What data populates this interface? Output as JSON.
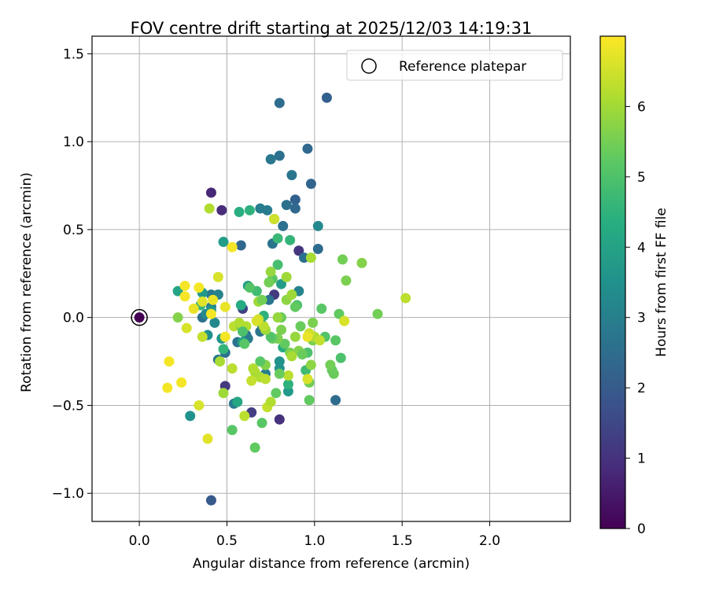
{
  "chart_data": {
    "type": "scatter",
    "title": "FOV centre drift starting at 2025/12/03 14:19:31",
    "xlabel": "Angular distance from reference (arcmin)",
    "ylabel": "Rotation from reference (arcmin)",
    "xlim": [
      -0.27,
      2.46
    ],
    "ylim": [
      -1.16,
      1.6
    ],
    "xticks": [
      0.0,
      0.5,
      1.0,
      1.5,
      2.0
    ],
    "yticks": [
      -1.0,
      -0.5,
      0.0,
      0.5,
      1.0,
      1.5
    ],
    "xtick_labels": [
      "0.0",
      "0.5",
      "1.0",
      "1.5",
      "2.0"
    ],
    "ytick_labels": [
      "−1.0",
      "−0.5",
      "0.0",
      "0.5",
      "1.0",
      "1.5"
    ],
    "grid": true,
    "legend": {
      "label": "Reference platepar",
      "placement": "top-right"
    },
    "reference_point": {
      "x": 0.0,
      "y": 0.0,
      "hours": 0.0
    },
    "colorbar": {
      "label": "Hours from first FF file",
      "colormap": "viridis",
      "range": [
        0,
        7.0
      ],
      "ticks": [
        0,
        1,
        2,
        3,
        4,
        5,
        6
      ],
      "tick_labels": [
        "0",
        "1",
        "2",
        "3",
        "4",
        "5",
        "6"
      ]
    },
    "points": [
      [
        0.0,
        0.0,
        0.0
      ],
      [
        0.41,
        0.71,
        0.8
      ],
      [
        0.47,
        0.61,
        0.9
      ],
      [
        0.49,
        -0.39,
        1.2
      ],
      [
        0.64,
        -0.54,
        1.3
      ],
      [
        0.8,
        -0.58,
        1.0
      ],
      [
        0.91,
        0.38,
        1.1
      ],
      [
        0.59,
        0.05,
        1.4
      ],
      [
        0.77,
        0.13,
        1.2
      ],
      [
        0.41,
        -1.04,
        2.0
      ],
      [
        0.8,
        1.22,
        2.5
      ],
      [
        1.07,
        1.25,
        2.2
      ],
      [
        0.75,
        0.9,
        2.8
      ],
      [
        0.8,
        0.92,
        2.6
      ],
      [
        0.96,
        0.96,
        2.4
      ],
      [
        0.87,
        0.81,
        2.7
      ],
      [
        0.98,
        0.76,
        2.3
      ],
      [
        0.89,
        0.67,
        2.2
      ],
      [
        0.84,
        0.64,
        2.6
      ],
      [
        0.89,
        0.62,
        2.4
      ],
      [
        0.69,
        0.62,
        3.0
      ],
      [
        0.73,
        0.61,
        2.9
      ],
      [
        0.82,
        0.52,
        2.6
      ],
      [
        1.02,
        0.52,
        3.3
      ],
      [
        1.02,
        0.39,
        2.5
      ],
      [
        0.58,
        0.41,
        2.4
      ],
      [
        0.76,
        0.42,
        2.7
      ],
      [
        0.94,
        0.34,
        2.6
      ],
      [
        1.12,
        -0.47,
        2.5
      ],
      [
        0.91,
        0.15,
        3.1
      ],
      [
        0.36,
        0.0,
        2.6
      ],
      [
        0.41,
        0.13,
        2.8
      ],
      [
        0.45,
        0.13,
        3.1
      ],
      [
        0.41,
        0.06,
        2.9
      ],
      [
        0.56,
        -0.14,
        2.7
      ],
      [
        0.61,
        -0.1,
        2.8
      ],
      [
        0.62,
        -0.12,
        2.9
      ],
      [
        0.7,
        -0.04,
        3.1
      ],
      [
        0.74,
        0.1,
        2.7
      ],
      [
        0.69,
        -0.08,
        2.7
      ],
      [
        0.43,
        -0.03,
        3.3
      ],
      [
        0.45,
        -0.24,
        2.8
      ],
      [
        0.49,
        -0.2,
        2.6
      ],
      [
        0.54,
        -0.49,
        2.9
      ],
      [
        0.48,
        0.43,
        3.9
      ],
      [
        0.72,
        -0.32,
        3.0
      ],
      [
        0.29,
        -0.56,
        3.6
      ],
      [
        0.8,
        -0.29,
        3.6
      ],
      [
        0.77,
        0.56,
        3.5
      ],
      [
        0.85,
        -0.42,
        3.8
      ],
      [
        0.38,
        0.02,
        3.3
      ],
      [
        0.39,
        -0.1,
        3.5
      ],
      [
        0.47,
        -0.12,
        3.7
      ],
      [
        0.62,
        0.18,
        3.9
      ],
      [
        0.59,
        -0.14,
        4.1
      ],
      [
        0.8,
        -0.25,
        3.6
      ],
      [
        0.56,
        -0.48,
        4.2
      ],
      [
        0.41,
        0.04,
        3.7
      ],
      [
        0.36,
        0.14,
        3.8
      ],
      [
        0.81,
        0.19,
        3.9
      ],
      [
        0.58,
        0.07,
        4.3
      ],
      [
        0.63,
        0.61,
        4.5
      ],
      [
        0.57,
        0.6,
        4.4
      ],
      [
        0.79,
        0.45,
        4.7
      ],
      [
        0.86,
        0.44,
        4.6
      ],
      [
        0.85,
        -0.38,
        4.5
      ],
      [
        0.95,
        -0.3,
        4.8
      ],
      [
        0.82,
        -0.17,
        4.3
      ],
      [
        0.67,
        0.15,
        4.8
      ],
      [
        0.71,
        0.01,
        4.5
      ],
      [
        0.35,
        0.07,
        4.6
      ],
      [
        0.22,
        0.15,
        4.1
      ],
      [
        0.48,
        -0.18,
        4.6
      ],
      [
        0.79,
        0.3,
        4.9
      ],
      [
        0.63,
        0.17,
        5.1
      ],
      [
        0.76,
        0.22,
        5.2
      ],
      [
        0.9,
        0.07,
        5.0
      ],
      [
        0.97,
        -0.47,
        5.3
      ],
      [
        0.53,
        -0.64,
        5.2
      ],
      [
        0.66,
        -0.74,
        5.3
      ],
      [
        0.7,
        -0.6,
        5.2
      ],
      [
        0.78,
        -0.43,
        5.3
      ],
      [
        0.96,
        -0.2,
        5.0
      ],
      [
        1.04,
        0.05,
        5.2
      ],
      [
        1.1,
        -0.3,
        5.3
      ],
      [
        1.11,
        -0.32,
        5.4
      ],
      [
        1.09,
        -0.27,
        5.5
      ],
      [
        1.15,
        -0.23,
        5.0
      ],
      [
        1.12,
        -0.13,
        5.2
      ],
      [
        1.06,
        -0.11,
        5.1
      ],
      [
        1.14,
        0.02,
        5.3
      ],
      [
        1.18,
        0.21,
        5.6
      ],
      [
        1.16,
        0.33,
        5.5
      ],
      [
        1.27,
        0.31,
        5.7
      ],
      [
        1.36,
        0.02,
        5.5
      ],
      [
        1.52,
        0.11,
        6.3
      ],
      [
        0.97,
        -0.37,
        5.5
      ],
      [
        0.98,
        -0.27,
        5.8
      ],
      [
        0.99,
        -0.13,
        5.6
      ],
      [
        0.99,
        -0.03,
        5.6
      ],
      [
        0.92,
        -0.05,
        5.4
      ],
      [
        0.86,
        -0.2,
        5.6
      ],
      [
        0.91,
        -0.19,
        5.7
      ],
      [
        0.89,
        -0.11,
        5.9
      ],
      [
        0.83,
        -0.15,
        5.3
      ],
      [
        0.79,
        -0.12,
        5.6
      ],
      [
        0.76,
        -0.12,
        5.4
      ],
      [
        0.75,
        -0.11,
        5.1
      ],
      [
        0.81,
        -0.07,
        5.6
      ],
      [
        0.81,
        0.0,
        5.4
      ],
      [
        0.84,
        0.1,
        5.8
      ],
      [
        0.84,
        0.23,
        6.0
      ],
      [
        0.98,
        0.34,
        6.1
      ],
      [
        0.74,
        0.2,
        5.5
      ],
      [
        0.75,
        0.26,
        5.9
      ],
      [
        0.68,
        0.09,
        6.0
      ],
      [
        0.7,
        0.1,
        5.5
      ],
      [
        0.67,
        -0.02,
        6.1
      ],
      [
        0.72,
        -0.27,
        5.7
      ],
      [
        0.69,
        -0.25,
        5.2
      ],
      [
        0.69,
        -0.34,
        6.2
      ],
      [
        0.72,
        -0.35,
        6.3
      ],
      [
        0.66,
        -0.31,
        6.1
      ],
      [
        0.64,
        -0.36,
        6.4
      ],
      [
        0.65,
        -0.29,
        6.2
      ],
      [
        0.6,
        -0.56,
        6.3
      ],
      [
        0.73,
        -0.51,
        6.4
      ],
      [
        0.75,
        -0.48,
        6.2
      ],
      [
        0.54,
        -0.05,
        6.3
      ],
      [
        0.58,
        -0.05,
        5.6
      ],
      [
        0.57,
        -0.03,
        6.2
      ],
      [
        0.53,
        -0.29,
        6.3
      ],
      [
        0.48,
        -0.43,
        6.0
      ],
      [
        0.46,
        -0.25,
        6.1
      ],
      [
        0.39,
        -0.69,
        6.7
      ],
      [
        0.34,
        -0.5,
        6.6
      ],
      [
        0.24,
        -0.37,
        6.9
      ],
      [
        0.16,
        -0.4,
        6.9
      ],
      [
        0.17,
        -0.25,
        6.9
      ],
      [
        0.27,
        -0.06,
        6.6
      ],
      [
        0.22,
        0.0,
        5.7
      ],
      [
        0.36,
        -0.11,
        6.4
      ],
      [
        0.34,
        0.17,
        6.9
      ],
      [
        0.31,
        0.05,
        6.8
      ],
      [
        0.42,
        0.1,
        6.8
      ],
      [
        0.41,
        0.02,
        6.9
      ],
      [
        0.36,
        0.09,
        6.7
      ],
      [
        0.26,
        0.12,
        6.9
      ],
      [
        0.26,
        0.18,
        6.9
      ],
      [
        0.45,
        0.23,
        6.6
      ],
      [
        0.49,
        0.06,
        6.8
      ],
      [
        0.49,
        -0.11,
        6.9
      ],
      [
        0.53,
        0.4,
        6.9
      ],
      [
        0.4,
        0.62,
        6.2
      ],
      [
        0.77,
        0.56,
        6.5
      ],
      [
        0.87,
        0.13,
        6.0
      ],
      [
        0.85,
        -0.33,
        6.3
      ],
      [
        0.87,
        -0.22,
        6.1
      ],
      [
        0.96,
        -0.35,
        6.6
      ],
      [
        1.0,
        -0.11,
        6.2
      ],
      [
        1.03,
        -0.13,
        6.4
      ],
      [
        0.97,
        -0.09,
        6.5
      ],
      [
        0.96,
        -0.11,
        6.8
      ],
      [
        0.79,
        0.0,
        5.9
      ],
      [
        0.72,
        -0.07,
        6.0
      ],
      [
        0.71,
        -0.05,
        6.3
      ],
      [
        0.68,
        -0.01,
        6.5
      ],
      [
        0.67,
        -0.02,
        6.6
      ],
      [
        0.61,
        -0.05,
        6.2
      ],
      [
        0.6,
        -0.15,
        5.2
      ],
      [
        0.59,
        -0.08,
        5.0
      ],
      [
        1.17,
        -0.02,
        6.6
      ],
      [
        0.93,
        -0.21,
        5.4
      ],
      [
        0.8,
        -0.32,
        5.4
      ],
      [
        0.89,
        0.06,
        5.3
      ]
    ]
  }
}
